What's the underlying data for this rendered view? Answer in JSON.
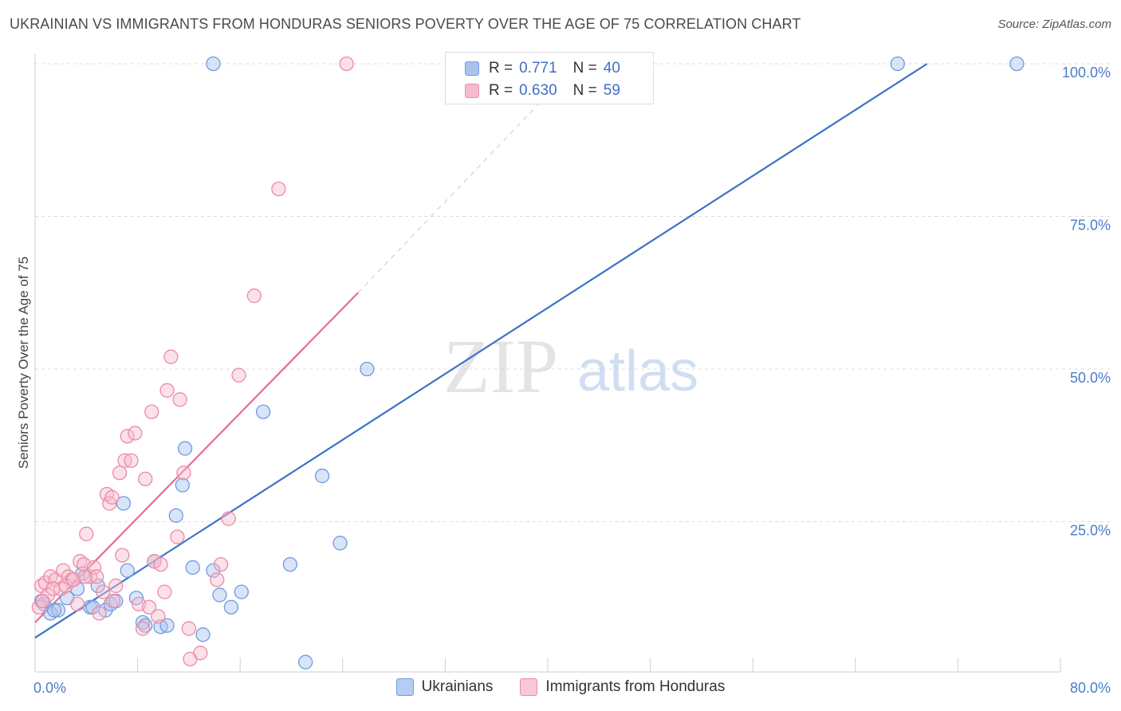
{
  "header": {
    "title": "UKRAINIAN VS IMMIGRANTS FROM HONDURAS SENIORS POVERTY OVER THE AGE OF 75 CORRELATION CHART",
    "source": "Source: ZipAtlas.com"
  },
  "watermark": {
    "zip": "ZIP",
    "atlas": "atlas"
  },
  "legend": {
    "rows": [
      {
        "r_label": "R =",
        "r_value": "0.771",
        "n_label": "N =",
        "n_value": "40",
        "color": "#a8c4ee",
        "border": "#6f9be0"
      },
      {
        "r_label": "R =",
        "r_value": "0.630",
        "n_label": "N =",
        "n_value": "59",
        "color": "#f6bccd",
        "border": "#ec8aa7"
      }
    ]
  },
  "bottom_legend": [
    {
      "label": "Ukrainians",
      "color": "#b5cdf2",
      "border": "#6f9be0"
    },
    {
      "label": "Immigrants from Honduras",
      "color": "#f8c8d6",
      "border": "#ec8aa7"
    }
  ],
  "chart_data": {
    "type": "scatter",
    "title": "UKRAINIAN VS IMMIGRANTS FROM HONDURAS SENIORS POVERTY OVER THE AGE OF 75 CORRELATION CHART",
    "ylabel": "Seniors Poverty Over the Age of 75",
    "xlabel": "",
    "xlim": [
      0,
      80
    ],
    "ylim": [
      0,
      105
    ],
    "x_tick_labels": [
      "0.0%",
      "80.0%"
    ],
    "y_ticks": [
      25,
      50,
      75,
      100
    ],
    "y_tick_labels": [
      "25.0%",
      "50.0%",
      "75.0%",
      "100.0%"
    ],
    "grid": true,
    "legend_position": "top-center",
    "series": [
      {
        "name": "Ukrainians",
        "color": "#6f9be0",
        "fill": "rgba(168,196,238,0.45)",
        "trend": {
          "x": [
            0,
            69.6
          ],
          "y": [
            6,
            100
          ]
        },
        "points": [
          [
            0.5,
            12
          ],
          [
            0.7,
            11.5
          ],
          [
            1.2,
            10
          ],
          [
            1.8,
            10.5
          ],
          [
            2.5,
            12.5
          ],
          [
            3.3,
            14
          ],
          [
            3.7,
            16.5
          ],
          [
            4.3,
            11
          ],
          [
            4.9,
            14.5
          ],
          [
            5.5,
            10.5
          ],
          [
            5.9,
            11.5
          ],
          [
            6.3,
            12
          ],
          [
            6.9,
            28
          ],
          [
            7.2,
            17
          ],
          [
            7.9,
            12.5
          ],
          [
            8.4,
            8.5
          ],
          [
            8.6,
            8
          ],
          [
            9.3,
            18.5
          ],
          [
            9.8,
            7.8
          ],
          [
            10.3,
            8
          ],
          [
            11.0,
            26
          ],
          [
            11.5,
            31
          ],
          [
            11.7,
            37
          ],
          [
            12.3,
            17.5
          ],
          [
            13.1,
            6.5
          ],
          [
            13.9,
            17
          ],
          [
            14.4,
            13
          ],
          [
            15.3,
            11
          ],
          [
            16.1,
            13.5
          ],
          [
            17.8,
            43
          ],
          [
            19.9,
            18
          ],
          [
            21.1,
            2
          ],
          [
            22.4,
            32.5
          ],
          [
            23.8,
            21.5
          ],
          [
            25.9,
            50
          ],
          [
            13.9,
            100
          ],
          [
            67.3,
            100
          ],
          [
            76.6,
            100
          ],
          [
            1.5,
            10.5
          ],
          [
            4.5,
            11
          ]
        ]
      },
      {
        "name": "Immigrants from Honduras",
        "color": "#ec8aa7",
        "fill": "rgba(246,188,205,0.45)",
        "trend": {
          "x": [
            0,
            25.2
          ],
          "y": [
            8.5,
            62.5
          ]
        },
        "trend_dashed": {
          "x": [
            25.2,
            42.3
          ],
          "y": [
            62.5,
            100
          ]
        },
        "points": [
          [
            0.3,
            11
          ],
          [
            0.5,
            14.5
          ],
          [
            0.8,
            15
          ],
          [
            1.2,
            16
          ],
          [
            1.6,
            15.5
          ],
          [
            2.0,
            14
          ],
          [
            2.2,
            17
          ],
          [
            2.6,
            16
          ],
          [
            2.9,
            15.5
          ],
          [
            3.3,
            11.5
          ],
          [
            3.5,
            18.5
          ],
          [
            3.8,
            18
          ],
          [
            4.0,
            23
          ],
          [
            4.3,
            16
          ],
          [
            4.6,
            17.5
          ],
          [
            4.8,
            16
          ],
          [
            5.0,
            10
          ],
          [
            5.3,
            13.5
          ],
          [
            5.6,
            29.5
          ],
          [
            5.8,
            28
          ],
          [
            6.0,
            29
          ],
          [
            6.3,
            14.5
          ],
          [
            6.6,
            33
          ],
          [
            6.8,
            19.5
          ],
          [
            7.0,
            35
          ],
          [
            7.2,
            39
          ],
          [
            7.5,
            35
          ],
          [
            7.8,
            39.5
          ],
          [
            8.1,
            11.5
          ],
          [
            8.4,
            7.5
          ],
          [
            8.6,
            32
          ],
          [
            8.9,
            11
          ],
          [
            9.1,
            43
          ],
          [
            9.3,
            18.5
          ],
          [
            9.6,
            9.5
          ],
          [
            10.1,
            13.5
          ],
          [
            10.3,
            46.5
          ],
          [
            10.6,
            52
          ],
          [
            11.1,
            22.5
          ],
          [
            11.3,
            45
          ],
          [
            11.6,
            33
          ],
          [
            12.0,
            7.5
          ],
          [
            12.1,
            2.5
          ],
          [
            12.9,
            3.5
          ],
          [
            14.2,
            15.5
          ],
          [
            14.5,
            18
          ],
          [
            15.1,
            25.5
          ],
          [
            15.9,
            49
          ],
          [
            17.1,
            62
          ],
          [
            19.0,
            79.5
          ],
          [
            24.3,
            100
          ],
          [
            1.0,
            13
          ],
          [
            1.4,
            14
          ],
          [
            2.4,
            14.5
          ],
          [
            3.0,
            15.5
          ],
          [
            3.9,
            16
          ],
          [
            6.1,
            12
          ],
          [
            9.8,
            18
          ],
          [
            0.6,
            12
          ]
        ]
      }
    ]
  }
}
